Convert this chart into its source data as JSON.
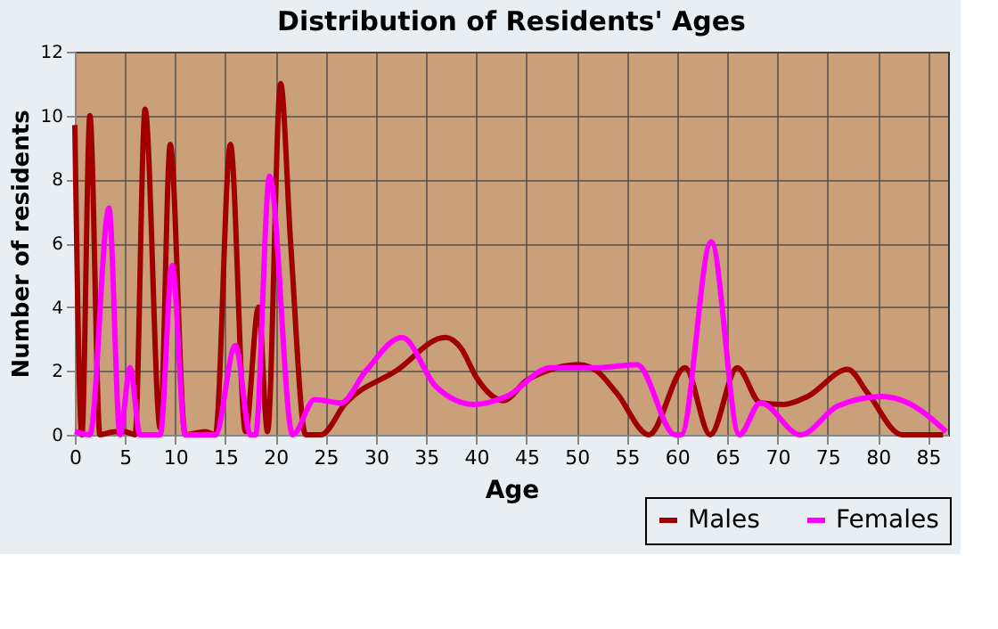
{
  "chart_data": {
    "type": "line",
    "title": "Distribution of Residents' Ages",
    "xlabel": "Age",
    "ylabel": "Number of residents",
    "xlim": [
      0,
      87
    ],
    "xticks": [
      0,
      5,
      10,
      15,
      20,
      25,
      30,
      35,
      40,
      45,
      50,
      55,
      60,
      65,
      70,
      75,
      80,
      85
    ],
    "ylim": [
      0,
      12
    ],
    "yticks": [
      0,
      2,
      4,
      6,
      8,
      10,
      12
    ],
    "grid": true,
    "legend": "bottom right",
    "marker": "none",
    "line_style": "solid",
    "series": [
      {
        "name": "Males",
        "color": "#a00000",
        "x": [
          0,
          0.7,
          1.5,
          2.5,
          4,
          5,
          6,
          7,
          8.5,
          9.5,
          11,
          13,
          14,
          15.5,
          17,
          18.3,
          19.2,
          20.5,
          21.5,
          23,
          24.5,
          27,
          32,
          36.9,
          38.5,
          40,
          42.7,
          45,
          47,
          50.2,
          52,
          54,
          57.2,
          60.8,
          63.3,
          66,
          68.3,
          70.6,
          73,
          77,
          79,
          82.4,
          86.5
        ],
        "values": [
          9.7,
          0,
          10,
          0,
          0.1,
          0.1,
          0,
          10.2,
          0.2,
          9.1,
          0,
          0.1,
          0,
          9.1,
          0.1,
          4,
          0.1,
          11,
          6,
          0,
          0,
          1,
          2,
          3.05,
          2.7,
          1.8,
          1.07,
          1.7,
          2,
          2.2,
          2,
          1.3,
          0,
          2.1,
          0,
          2.1,
          1,
          0.95,
          1.2,
          2.05,
          1.3,
          0,
          0
        ]
      },
      {
        "name": "Females",
        "color": "#ff00ff",
        "x": [
          0,
          1.5,
          3.4,
          4.5,
          5.5,
          6.5,
          8.5,
          9.7,
          11,
          14,
          16,
          17.5,
          18,
          19.4,
          21.7,
          23.9,
          26.5,
          29,
          32.6,
          36,
          39.8,
          43,
          47.4,
          52,
          56,
          59.8,
          60.4,
          63.4,
          66.2,
          68.3,
          72.3,
          76,
          80.4,
          83,
          86.8
        ],
        "values": [
          0.1,
          0,
          7.1,
          0,
          2.1,
          0,
          0,
          5.3,
          0,
          0,
          2.8,
          0,
          0,
          8.1,
          0,
          1.1,
          1.0,
          2,
          3.05,
          1.5,
          0.95,
          1.2,
          2.1,
          2.1,
          2.2,
          0,
          0,
          6.05,
          0,
          1.0,
          0,
          0.9,
          1.2,
          1.0,
          0.1
        ]
      }
    ]
  }
}
